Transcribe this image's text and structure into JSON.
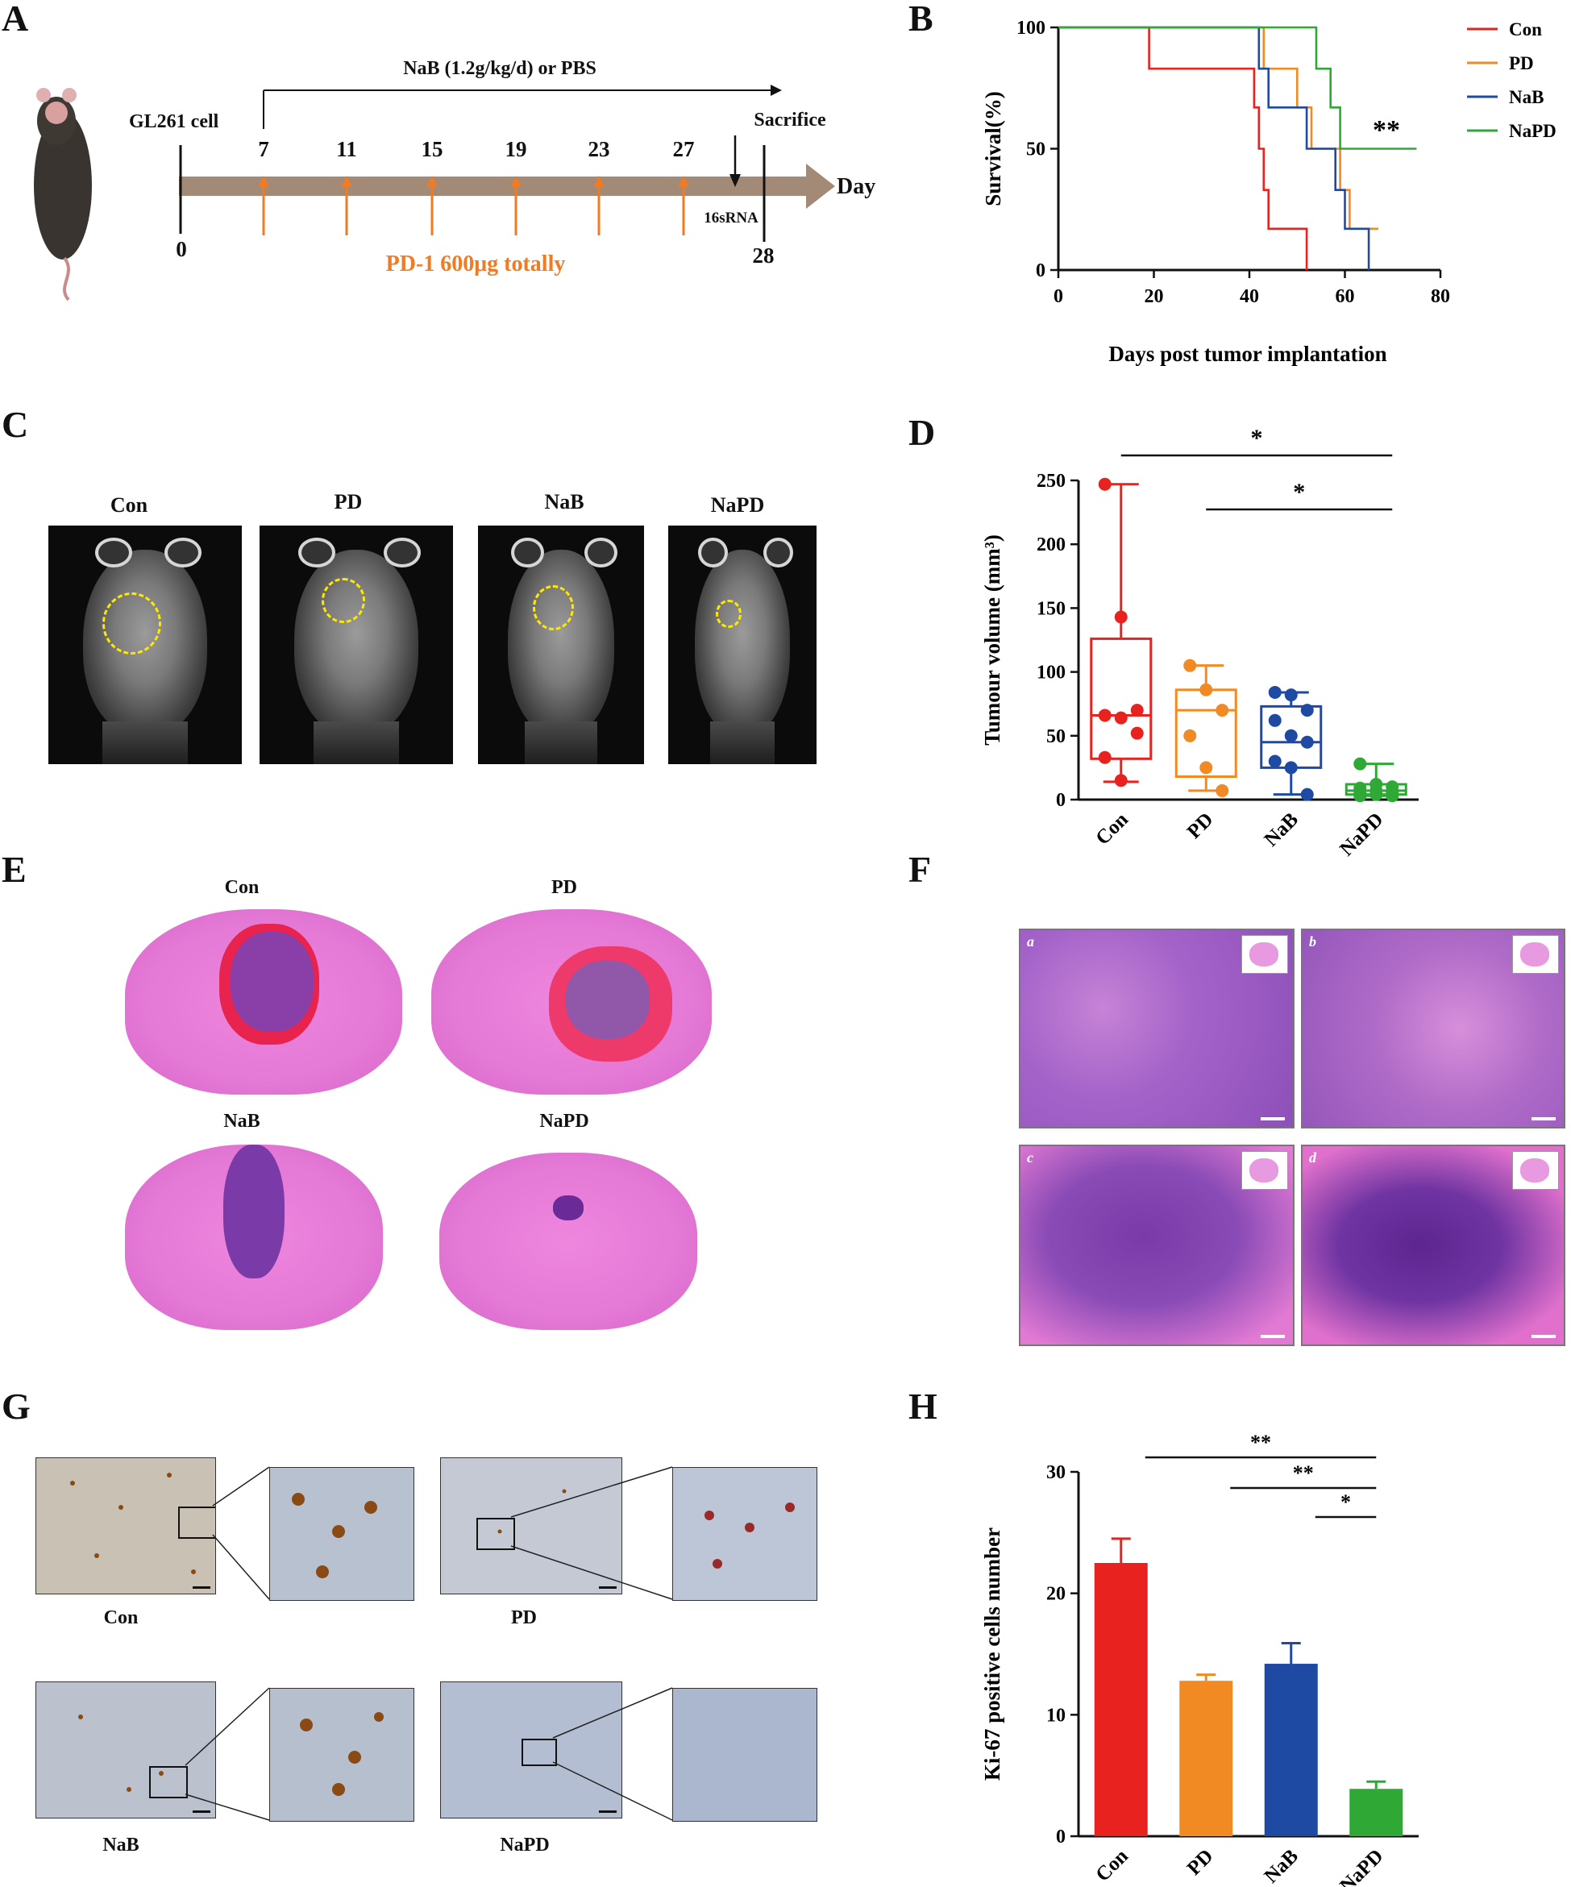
{
  "panels": {
    "a": "A",
    "b": "B",
    "c": "C",
    "d": "D",
    "e": "E",
    "f": "F",
    "g": "G",
    "h": "H"
  },
  "timeline": {
    "treatment_label": "NaB (1.2g/kg/d) or PBS",
    "start_label": "GL261 cell",
    "end_label": "Sacrifice",
    "axis_label": "Day",
    "sample_label": "16sRNA",
    "antibody_label": "PD-1 600μg totally",
    "days_top": [
      "7",
      "11",
      "15",
      "19",
      "23",
      "27"
    ],
    "day_start": "0",
    "day_end": "28",
    "colors": {
      "arrow": "#a38a77",
      "injection": "#f07b23"
    }
  },
  "chart_data": [
    {
      "type": "line",
      "panel": "B",
      "step": true,
      "xlabel": "Days post tumor implantation",
      "ylabel": "Survival(%)",
      "xlim": [
        0,
        80
      ],
      "ylim": [
        0,
        100
      ],
      "xticks": [
        "0",
        "20",
        "40",
        "60",
        "80"
      ],
      "yticks": [
        "0",
        "50",
        "100"
      ],
      "annotation": "**",
      "legend_position": "top-right",
      "series": [
        {
          "name": "Con",
          "color": "#e8231f",
          "points": [
            [
              0,
              100
            ],
            [
              19,
              100
            ],
            [
              19,
              83
            ],
            [
              41,
              83
            ],
            [
              41,
              67
            ],
            [
              42,
              67
            ],
            [
              42,
              50
            ],
            [
              43,
              50
            ],
            [
              43,
              33
            ],
            [
              44,
              33
            ],
            [
              44,
              17
            ],
            [
              52,
              17
            ],
            [
              52,
              0
            ]
          ]
        },
        {
          "name": "PD",
          "color": "#f28a24",
          "points": [
            [
              0,
              100
            ],
            [
              43,
              100
            ],
            [
              43,
              83
            ],
            [
              50,
              83
            ],
            [
              50,
              67
            ],
            [
              53,
              67
            ],
            [
              53,
              50
            ],
            [
              59,
              50
            ],
            [
              59,
              33
            ],
            [
              61,
              33
            ],
            [
              61,
              17
            ],
            [
              67,
              17
            ]
          ]
        },
        {
          "name": "NaB",
          "color": "#1f4aa3",
          "points": [
            [
              0,
              100
            ],
            [
              42,
              100
            ],
            [
              42,
              83
            ],
            [
              44,
              83
            ],
            [
              44,
              67
            ],
            [
              52,
              67
            ],
            [
              52,
              50
            ],
            [
              58,
              50
            ],
            [
              58,
              33
            ],
            [
              60,
              33
            ],
            [
              60,
              17
            ],
            [
              65,
              17
            ],
            [
              65,
              0
            ]
          ]
        },
        {
          "name": "NaPD",
          "color": "#2fa836",
          "points": [
            [
              0,
              100
            ],
            [
              54,
              100
            ],
            [
              54,
              83
            ],
            [
              57,
              83
            ],
            [
              57,
              67
            ],
            [
              59,
              67
            ],
            [
              59,
              50
            ],
            [
              75,
              50
            ]
          ]
        }
      ]
    },
    {
      "type": "box",
      "panel": "D",
      "ylabel": "Tumour volume (mm³)",
      "ylim": [
        0,
        250
      ],
      "yticks": [
        "0",
        "50",
        "100",
        "150",
        "200",
        "250"
      ],
      "categories": [
        "Con",
        "PD",
        "NaB",
        "NaPD"
      ],
      "colors": [
        "#e8231f",
        "#f28a24",
        "#1f4aa3",
        "#2fa836"
      ],
      "boxes": [
        {
          "min": 14,
          "q1": 32,
          "median": 66,
          "q3": 126,
          "max": 247,
          "points": [
            247,
            143,
            70,
            66,
            64,
            52,
            33,
            15
          ]
        },
        {
          "min": 7,
          "q1": 18,
          "median": 70,
          "q3": 86,
          "max": 105,
          "points": [
            105,
            86,
            70,
            50,
            25,
            7
          ]
        },
        {
          "min": 4,
          "q1": 25,
          "median": 45,
          "q3": 73,
          "max": 84,
          "points": [
            84,
            82,
            70,
            62,
            50,
            45,
            30,
            25,
            4
          ]
        },
        {
          "min": 3,
          "q1": 4,
          "median": 7,
          "q3": 12,
          "max": 28,
          "points": [
            28,
            12,
            10,
            9,
            7,
            6,
            5,
            4,
            3,
            3
          ]
        }
      ],
      "significance": [
        {
          "from": "Con",
          "to": "NaPD",
          "label": "*"
        },
        {
          "from": "PD",
          "to": "NaPD",
          "label": "*"
        }
      ]
    },
    {
      "type": "bar",
      "panel": "H",
      "ylabel": "Ki-67 positive cells number",
      "ylim": [
        0,
        30
      ],
      "yticks": [
        "0",
        "10",
        "20",
        "30"
      ],
      "categories": [
        "Con",
        "PD",
        "NaB",
        "NaPD"
      ],
      "values": [
        22.5,
        12.8,
        14.2,
        3.9
      ],
      "errors": [
        2.0,
        0.5,
        1.7,
        0.6
      ],
      "colors": [
        "#e8231f",
        "#f28a24",
        "#1f4aa3",
        "#2fa836"
      ],
      "significance": [
        {
          "from": "Con",
          "to": "NaPD",
          "label": "**"
        },
        {
          "from": "PD",
          "to": "NaPD",
          "label": "**"
        },
        {
          "from": "NaB",
          "to": "NaPD",
          "label": "*"
        }
      ]
    }
  ],
  "mri": {
    "labels": [
      "Con",
      "PD",
      "NaB",
      "NaPD"
    ]
  },
  "he": {
    "labels": [
      "Con",
      "PD",
      "NaB",
      "NaPD"
    ]
  },
  "micro": {
    "labels": [
      "a",
      "b",
      "c",
      "d"
    ]
  },
  "ihc": {
    "labels": [
      "Con",
      "PD",
      "NaB",
      "NaPD"
    ]
  }
}
